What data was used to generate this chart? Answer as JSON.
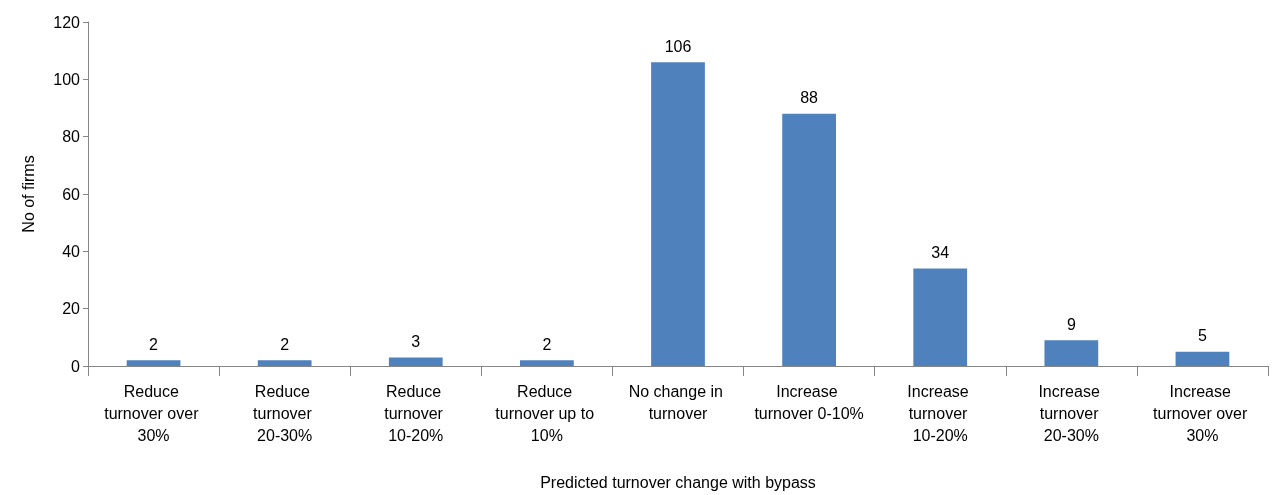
{
  "chart_data": {
    "type": "bar",
    "xlabel": "Predicted turnover change with bypass",
    "ylabel": "No of firms",
    "categories": [
      "Reduce turnover over 30%",
      "Reduce turnover 20-30%",
      "Reduce turnover 10-20%",
      "Reduce turnover up to 10%",
      "No change in turnover",
      "Increase turnover 0-10%",
      "Increase turnover 10-20%",
      "Increase turnover 20-30%",
      "Increase turnover over 30%"
    ],
    "values": [
      2,
      2,
      3,
      2,
      106,
      88,
      34,
      9,
      5
    ],
    "color": "#4f81bd",
    "ylim": [
      0,
      120
    ],
    "yticks": [
      0,
      20,
      40,
      60,
      80,
      100,
      120
    ],
    "grid": false,
    "data_labels": true
  }
}
